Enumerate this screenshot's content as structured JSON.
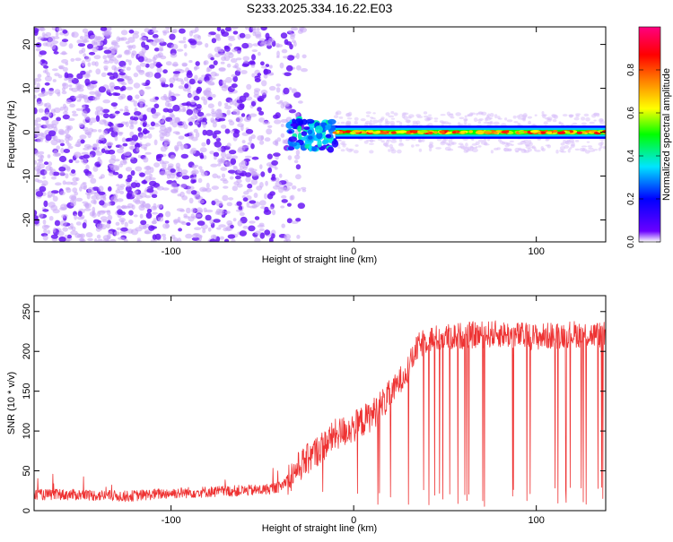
{
  "title": "S233.2025.334.16.22.E03",
  "chart_data": [
    {
      "type": "heatmap",
      "name": "spectrogram",
      "xlabel": "Height of straight line (km)",
      "ylabel": "Frequency (Hz)",
      "xlim": [
        -175,
        138
      ],
      "ylim": [
        -25,
        24
      ],
      "xticks": [
        -100,
        0,
        100
      ],
      "xtick_labels": [
        "-100",
        "0",
        "100"
      ],
      "yticks": [
        -20,
        -10,
        0,
        10,
        20
      ],
      "ytick_labels": [
        "-20",
        "-10",
        "0",
        "10",
        "20"
      ],
      "colorbar": {
        "label": "Normalized spectral amplitude",
        "range": [
          0.0,
          1.0
        ],
        "ticks": [
          0.0,
          0.2,
          0.4,
          0.6,
          0.8
        ],
        "tick_labels": [
          "0.0",
          "0.2",
          "0.4",
          "0.6",
          "0.8"
        ],
        "colors": [
          "#ffffff",
          "#6a00ff",
          "#0000ff",
          "#00e5ff",
          "#00ff00",
          "#ffff00",
          "#ff8000",
          "#ff0000",
          "#ff0080"
        ]
      },
      "regions": [
        {
          "description": "scattered noise",
          "x_range": [
            -175,
            -35
          ],
          "f_range": [
            -25,
            24
          ],
          "amplitude": 0.15
        },
        {
          "description": "transition",
          "x_range": [
            -35,
            -10
          ],
          "f_range": [
            -4,
            3
          ],
          "amplitude": 0.35
        },
        {
          "description": "narrow carrier line",
          "x_range": [
            -10,
            138
          ],
          "f_center": 0,
          "f_halfwidth": 1.5,
          "amplitude": 0.85
        }
      ]
    },
    {
      "type": "line",
      "name": "snr",
      "xlabel": "Height of straight line (km)",
      "ylabel": "SNR (10 * v/v)",
      "xlim": [
        -175,
        138
      ],
      "ylim": [
        0,
        270
      ],
      "xticks": [
        -100,
        0,
        100
      ],
      "xtick_labels": [
        "-100",
        "0",
        "100"
      ],
      "yticks": [
        0,
        50,
        100,
        150,
        200,
        250
      ],
      "ytick_labels": [
        "0",
        "50",
        "100",
        "150",
        "200",
        "250"
      ],
      "color": "#ee3333",
      "series": [
        {
          "name": "SNR",
          "x": [
            -175,
            -150,
            -125,
            -100,
            -75,
            -50,
            -40,
            -30,
            -20,
            -10,
            0,
            10,
            20,
            30,
            35,
            40,
            60,
            80,
            100,
            120,
            138
          ],
          "values": [
            20,
            20,
            18,
            22,
            24,
            26,
            30,
            55,
            75,
            95,
            105,
            120,
            145,
            180,
            205,
            215,
            220,
            222,
            218,
            222,
            220
          ]
        }
      ]
    }
  ]
}
